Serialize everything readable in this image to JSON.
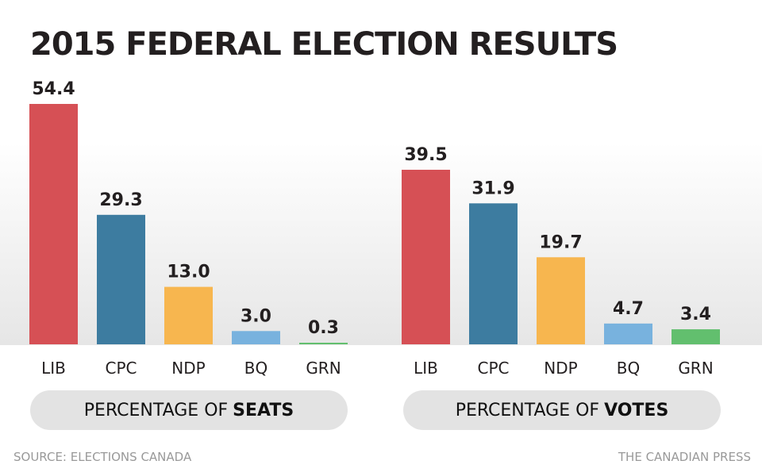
{
  "title": "2015 FEDERAL ELECTION RESULTS",
  "footer": {
    "source": "SOURCE: ELECTIONS CANADA",
    "credit": "THE CANADIAN PRESS"
  },
  "colors": {
    "LIB": "#d65055",
    "CPC": "#3d7ca0",
    "NDP": "#f7b64f",
    "BQ": "#78b2de",
    "GRN": "#62bf6e"
  },
  "chart_data": [
    {
      "type": "bar",
      "title": "PERCENTAGE OF SEATS",
      "title_prefix": "PERCENTAGE OF",
      "title_bold": "SEATS",
      "categories": [
        "LIB",
        "CPC",
        "NDP",
        "BQ",
        "GRN"
      ],
      "values": [
        54.4,
        29.3,
        13.0,
        3.0,
        0.3
      ],
      "labels": [
        "54.4",
        "29.3",
        "13.0",
        "3.0",
        "0.3"
      ],
      "xlabel": "",
      "ylabel": "",
      "ylim": [
        0,
        54.4
      ],
      "grid": false
    },
    {
      "type": "bar",
      "title": "PERCENTAGE OF VOTES",
      "title_prefix": "PERCENTAGE OF",
      "title_bold": "VOTES",
      "categories": [
        "LIB",
        "CPC",
        "NDP",
        "BQ",
        "GRN"
      ],
      "values": [
        39.5,
        31.9,
        19.7,
        4.7,
        3.4
      ],
      "labels": [
        "39.5",
        "31.9",
        "19.7",
        "4.7",
        "3.4"
      ],
      "xlabel": "",
      "ylabel": "",
      "ylim": [
        0,
        54.4
      ],
      "grid": false
    }
  ]
}
